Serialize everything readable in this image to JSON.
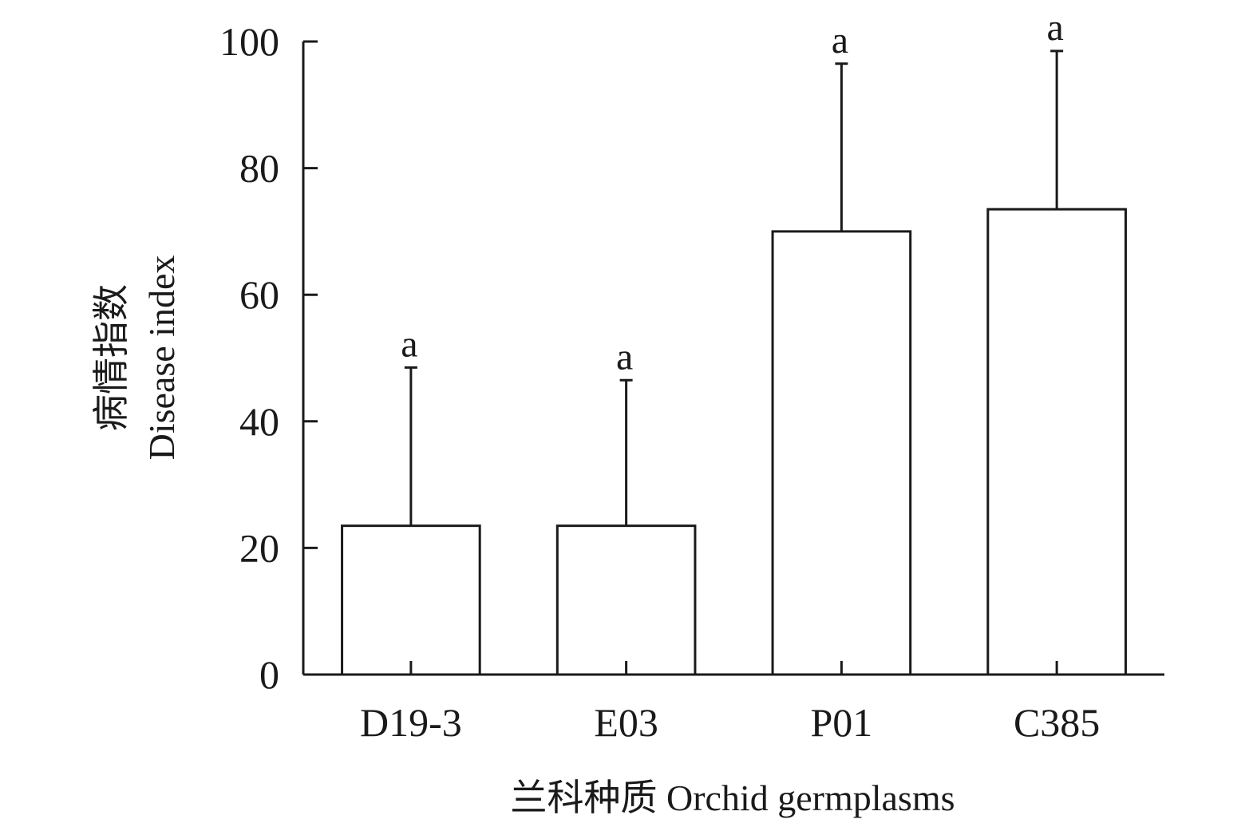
{
  "chart_data": {
    "type": "bar",
    "categories": [
      "D19-3",
      "E03",
      "P01",
      "C385"
    ],
    "values": [
      23.5,
      23.5,
      70,
      73.5
    ],
    "error_upper": [
      48.5,
      46.5,
      96.5,
      98.5
    ],
    "significance_letters": [
      "a",
      "a",
      "a",
      "a"
    ],
    "title": "",
    "xlabel": "兰科种质 Orchid germplasms",
    "ylabel_cn": "病情指数",
    "ylabel_en": "Disease index",
    "ylim": [
      0,
      100
    ],
    "yticks": [
      0,
      20,
      40,
      60,
      80,
      100
    ],
    "grid": false,
    "legend": "none",
    "bar_fill": "#ffffff",
    "bar_stroke": "#1a1a1a"
  }
}
